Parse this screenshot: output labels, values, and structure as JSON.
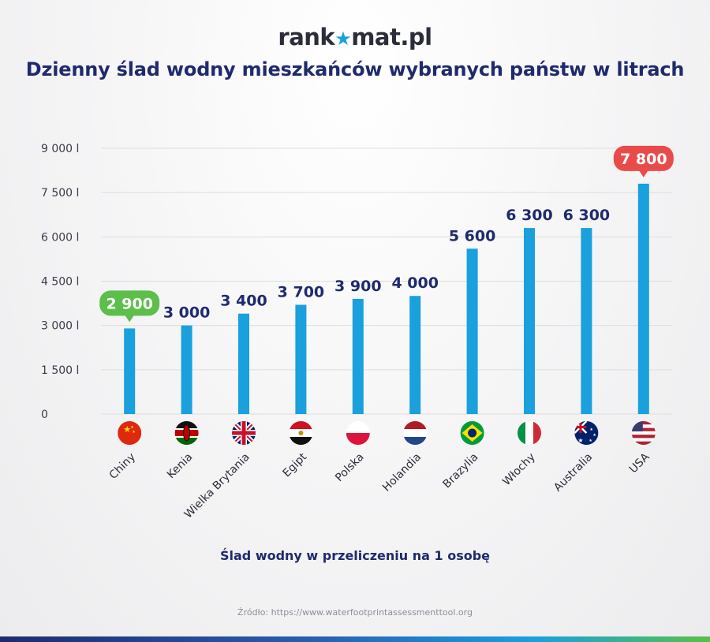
{
  "brand": {
    "logo_text_left": "rank",
    "logo_star": "★",
    "logo_text_right": "mat.pl"
  },
  "title": "Dzienny ślad wodny mieszkańców wybranych państw w litrach",
  "chart_data": {
    "type": "bar",
    "categories": [
      "Chiny",
      "Kenia",
      "Wielka Brytania",
      "Egipt",
      "Polska",
      "Holandia",
      "Brazylia",
      "Włochy",
      "Australia",
      "USA"
    ],
    "values": [
      2900,
      3000,
      3400,
      3700,
      3900,
      4000,
      5600,
      6300,
      6300,
      7800
    ],
    "value_labels": [
      "2 900",
      "3 000",
      "3 400",
      "3 700",
      "3 900",
      "4 000",
      "5 600",
      "6 300",
      "6 300",
      "7 800"
    ],
    "highlight": {
      "min_index": 0,
      "max_index": 9
    },
    "yticks": [
      0,
      1500,
      3000,
      4500,
      6000,
      7500,
      9000
    ],
    "ytick_labels": [
      "0",
      "1 500 l",
      "3 000 l",
      "4 500 l",
      "6 000 l",
      "7 500 l",
      "9 000 l"
    ],
    "ylim": [
      0,
      9000
    ],
    "xlabel": "Ślad wodny w przeliczeniu na 1 osobę",
    "ylabel": "",
    "grid": true,
    "colors": {
      "bar": "#1aa0dc",
      "min_badge": "#5bbf4a",
      "max_badge": "#e94b4b",
      "label": "#1f2a6e",
      "grid": "#dddddd"
    },
    "flags": [
      "china-flag-icon",
      "kenya-flag-icon",
      "uk-flag-icon",
      "egypt-flag-icon",
      "poland-flag-icon",
      "netherlands-flag-icon",
      "brazil-flag-icon",
      "italy-flag-icon",
      "australia-flag-icon",
      "usa-flag-icon"
    ]
  },
  "source": "Źródło: https://www.waterfootprintassessmenttool.org"
}
